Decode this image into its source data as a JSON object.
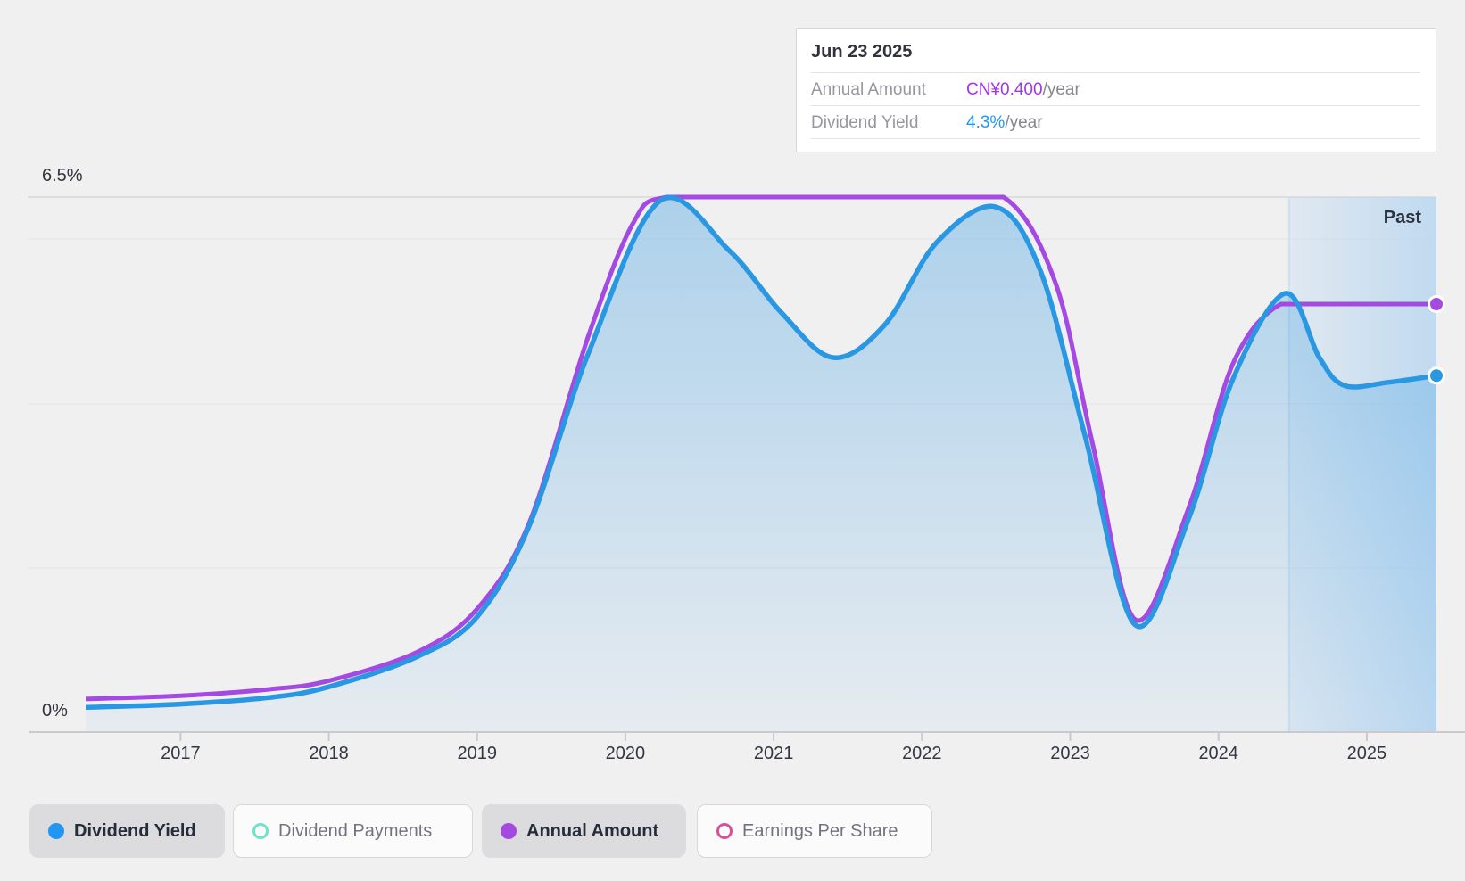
{
  "tooltip": {
    "date": "Jun 23 2025",
    "rows": [
      {
        "label": "Annual Amount",
        "value": "CN¥0.400",
        "suffix": "/year",
        "color": "#a434e8"
      },
      {
        "label": "Dividend Yield",
        "value": "4.3%",
        "suffix": "/year",
        "color": "#2196f3"
      }
    ]
  },
  "past_label": "Past",
  "axis": {
    "y_max_label": "6.5%",
    "y_min_label": "0%"
  },
  "legend": [
    {
      "label": "Dividend Yield",
      "active": true,
      "marker": "filled",
      "color": "#2196f3"
    },
    {
      "label": "Dividend Payments",
      "active": false,
      "marker": "hollow",
      "color": "#6fe3c9"
    },
    {
      "label": "Annual Amount",
      "active": true,
      "marker": "filled",
      "color": "#a44ae3"
    },
    {
      "label": "Earnings Per Share",
      "active": false,
      "marker": "hollow",
      "color": "#d4549b"
    }
  ],
  "colors": {
    "background": "#f0f0f1",
    "yield_line": "#2997e2",
    "amount_line": "#a44ae3",
    "gridline": "#e3e3e6",
    "gridline_top": "#d7d7db",
    "axis_line": "#c9c9ce",
    "past_boundary": "#cfe0f0"
  },
  "chart_data": {
    "type": "line",
    "title": "Dividend yield and payments history",
    "x_domain": [
      2016.36,
      2025.47
    ],
    "x_tick_years": [
      2017,
      2018,
      2019,
      2020,
      2021,
      2022,
      2023,
      2024,
      2025
    ],
    "y_axis": {
      "min_label": "0%",
      "max_label": "6.5%",
      "min": 0,
      "max": 6.5,
      "gridlines_pct": [
        2,
        4,
        6,
        6.5
      ]
    },
    "past_region_start": 2024.47,
    "legend_position": "bottom",
    "series": [
      {
        "name": "Dividend Yield",
        "unit": "%",
        "color": "#2997e2",
        "area": true,
        "value_at_chart_top": 6.5,
        "current_value": 4.3,
        "points": [
          [
            2016.36,
            0.3
          ],
          [
            2017.0,
            0.34
          ],
          [
            2017.6,
            0.42
          ],
          [
            2018.0,
            0.55
          ],
          [
            2018.6,
            0.92
          ],
          [
            2019.0,
            1.4
          ],
          [
            2019.35,
            2.5
          ],
          [
            2019.75,
            4.6
          ],
          [
            2020.23,
            6.45
          ],
          [
            2020.7,
            5.85
          ],
          [
            2021.05,
            5.1
          ],
          [
            2021.4,
            4.55
          ],
          [
            2021.75,
            4.95
          ],
          [
            2022.1,
            5.95
          ],
          [
            2022.5,
            6.38
          ],
          [
            2022.8,
            5.6
          ],
          [
            2023.1,
            3.6
          ],
          [
            2023.44,
            1.3
          ],
          [
            2023.8,
            2.6
          ],
          [
            2024.1,
            4.3
          ],
          [
            2024.45,
            5.33
          ],
          [
            2024.68,
            4.55
          ],
          [
            2024.85,
            4.21
          ],
          [
            2025.15,
            4.25
          ],
          [
            2025.47,
            4.33
          ]
        ]
      },
      {
        "name": "Annual Amount",
        "unit": "CN¥",
        "color": "#a44ae3",
        "area": false,
        "value_at_chart_top": 0.5,
        "current_value": 0.4,
        "points": [
          [
            2016.36,
            0.031
          ],
          [
            2017.0,
            0.034
          ],
          [
            2017.6,
            0.04
          ],
          [
            2018.0,
            0.048
          ],
          [
            2018.6,
            0.075
          ],
          [
            2019.0,
            0.115
          ],
          [
            2019.35,
            0.195
          ],
          [
            2019.75,
            0.37
          ],
          [
            2020.05,
            0.475
          ],
          [
            2020.28,
            0.5
          ],
          [
            2021.0,
            0.5
          ],
          [
            2022.0,
            0.5
          ],
          [
            2022.55,
            0.5
          ],
          [
            2022.9,
            0.42
          ],
          [
            2023.15,
            0.27
          ],
          [
            2023.44,
            0.105
          ],
          [
            2023.8,
            0.21
          ],
          [
            2024.1,
            0.345
          ],
          [
            2024.42,
            0.4
          ],
          [
            2024.8,
            0.4
          ],
          [
            2025.1,
            0.4
          ],
          [
            2025.47,
            0.4
          ]
        ]
      }
    ]
  }
}
